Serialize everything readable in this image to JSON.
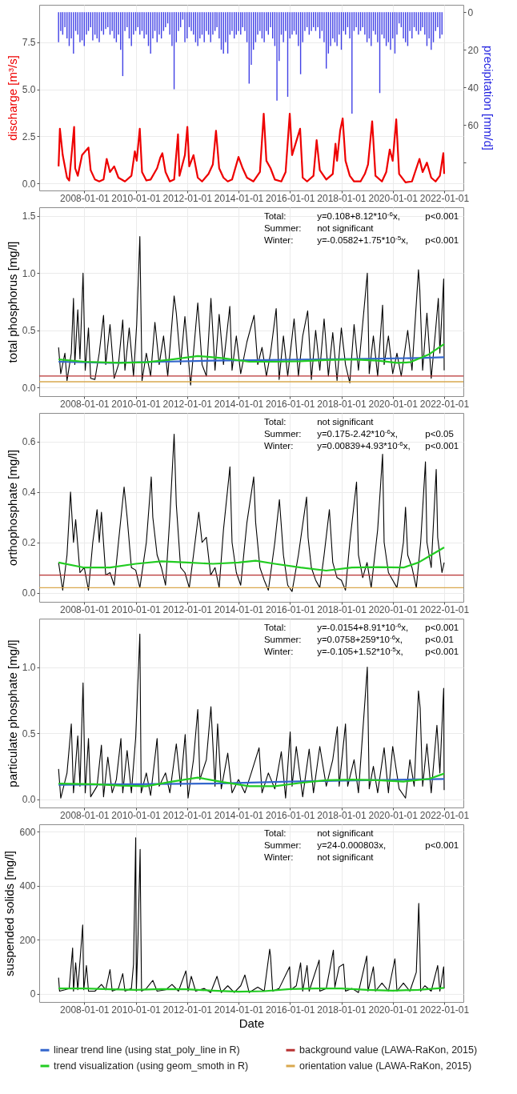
{
  "chart_data": [
    {
      "type": "line",
      "ylabel": "discharge [m³/s]",
      "y2label": "precipitation [mm/d]",
      "xlim": [
        "2006-04-01",
        "2022-10-01"
      ],
      "xticks": [
        "2008-01-01",
        "2010-01-01",
        "2012-01-01",
        "2014-01-01",
        "2016-01-01",
        "2018-01-01",
        "2020-01-01",
        "2022-01-01"
      ],
      "ylim": [
        -0.38,
        9.49
      ],
      "yticks": [
        {
          "value": 0,
          "label": "0.0"
        },
        {
          "value": 2.5,
          "label": "2.5"
        },
        {
          "value": 5,
          "label": "5.0"
        },
        {
          "value": 7.5,
          "label": "7.5"
        }
      ],
      "y2lim": [
        94.8,
        -3.9
      ],
      "y2ticks": [
        0,
        20,
        40,
        60,
        {
          "value": 80,
          "label": null
        }
      ],
      "grid": true,
      "series": [
        {
          "type": "bar",
          "axis": "y2",
          "color": "#1f1fe0",
          "x": [
            "2007-01",
            "2007-02",
            "2007-03",
            "2007-04",
            "2007-05",
            "2007-06",
            "2007-07",
            "2007-08",
            "2007-09",
            "2007-10",
            "2007-11",
            "2007-12",
            "2008-01",
            "2008-02",
            "2008-03",
            "2008-04",
            "2008-05",
            "2008-06",
            "2008-07",
            "2008-08",
            "2008-09",
            "2008-10",
            "2008-11",
            "2008-12",
            "2009-01",
            "2009-02",
            "2009-03",
            "2009-04",
            "2009-05",
            "2009-06",
            "2009-07",
            "2009-08",
            "2009-09",
            "2009-10",
            "2009-11",
            "2009-12",
            "2010-01",
            "2010-02",
            "2010-03",
            "2010-04",
            "2010-05",
            "2010-06",
            "2010-07",
            "2010-08",
            "2010-09",
            "2010-10",
            "2010-11",
            "2010-12",
            "2011-01",
            "2011-02",
            "2011-03",
            "2011-04",
            "2011-05",
            "2011-06",
            "2011-07",
            "2011-08",
            "2011-09",
            "2011-10",
            "2011-11",
            "2011-12",
            "2012-01",
            "2012-02",
            "2012-03",
            "2012-04",
            "2012-05",
            "2012-06",
            "2012-07",
            "2012-08",
            "2012-09",
            "2012-10",
            "2012-11",
            "2012-12",
            "2013-01",
            "2013-02",
            "2013-03",
            "2013-04",
            "2013-05",
            "2013-06",
            "2013-07",
            "2013-08",
            "2013-09",
            "2013-10",
            "2013-11",
            "2013-12",
            "2014-01",
            "2014-02",
            "2014-03",
            "2014-04",
            "2014-05",
            "2014-06",
            "2014-07",
            "2014-08",
            "2014-09",
            "2014-10",
            "2014-11",
            "2014-12",
            "2015-01",
            "2015-02",
            "2015-03",
            "2015-04",
            "2015-05",
            "2015-06",
            "2015-07",
            "2015-08",
            "2015-09",
            "2015-10",
            "2015-11",
            "2015-12",
            "2016-01",
            "2016-02",
            "2016-03",
            "2016-04",
            "2016-05",
            "2016-06",
            "2016-07",
            "2016-08",
            "2016-09",
            "2016-10",
            "2016-11",
            "2016-12",
            "2017-01",
            "2017-02",
            "2017-03",
            "2017-04",
            "2017-05",
            "2017-06",
            "2017-07",
            "2017-08",
            "2017-09",
            "2017-10",
            "2017-11",
            "2017-12",
            "2018-01",
            "2018-02",
            "2018-03",
            "2018-04",
            "2018-05",
            "2018-06",
            "2018-07",
            "2018-08",
            "2018-09",
            "2018-10",
            "2018-11",
            "2018-12",
            "2019-01",
            "2019-02",
            "2019-03",
            "2019-04",
            "2019-05",
            "2019-06",
            "2019-07",
            "2019-08",
            "2019-09",
            "2019-10",
            "2019-11",
            "2019-12",
            "2020-01",
            "2020-02",
            "2020-03",
            "2020-04",
            "2020-05",
            "2020-06",
            "2020-07",
            "2020-08",
            "2020-09",
            "2020-10",
            "2020-11",
            "2020-12",
            "2021-01",
            "2021-02",
            "2021-03",
            "2021-04",
            "2021-05",
            "2021-06",
            "2021-07",
            "2021-08",
            "2021-09",
            "2021-10",
            "2021-11",
            "2021-12"
          ],
          "values": [
            16,
            10,
            12,
            8,
            14,
            18,
            14,
            22,
            10,
            12,
            16,
            15,
            18,
            12,
            10,
            8,
            15,
            12,
            14,
            16,
            10,
            12,
            9,
            8,
            12,
            10,
            14,
            16,
            12,
            20,
            34,
            10,
            8,
            14,
            18,
            12,
            10,
            8,
            12,
            10,
            14,
            12,
            18,
            22,
            14,
            10,
            16,
            12,
            14,
            10,
            8,
            6,
            12,
            18,
            41,
            16,
            10,
            8,
            4,
            16,
            14,
            8,
            10,
            12,
            16,
            18,
            14,
            12,
            16,
            10,
            12,
            16,
            12,
            10,
            8,
            14,
            20,
            22,
            16,
            22,
            12,
            10,
            14,
            12,
            10,
            12,
            8,
            10,
            16,
            38,
            28,
            20,
            16,
            12,
            10,
            14,
            16,
            10,
            12,
            8,
            14,
            18,
            47,
            26,
            12,
            16,
            10,
            45,
            14,
            12,
            10,
            12,
            18,
            33,
            16,
            10,
            8,
            12,
            10,
            8,
            10,
            8,
            14,
            10,
            16,
            30,
            22,
            18,
            14,
            16,
            18,
            12,
            20,
            10,
            12,
            8,
            14,
            54,
            10,
            8,
            12,
            10,
            8,
            12,
            16,
            14,
            18,
            10,
            12,
            16,
            43,
            12,
            14,
            18,
            16,
            20,
            14,
            22,
            12,
            6,
            8,
            14,
            16,
            18,
            10,
            14,
            8,
            10,
            12,
            10,
            8,
            12,
            18,
            14,
            20,
            16,
            10,
            8,
            14,
            12
          ]
        },
        {
          "color": "#ee0000",
          "x": [
            "2007-01-01",
            "2007-01-20",
            "2007-03-01",
            "2007-05-01",
            "2007-06-01",
            "2007-08-10",
            "2007-08-25",
            "2007-10-01",
            "2007-12-01",
            "2008-03-01",
            "2008-04-01",
            "2008-06-01",
            "2008-08-01",
            "2008-10-01",
            "2008-11-15",
            "2009-01-01",
            "2009-03-01",
            "2009-05-01",
            "2009-08-01",
            "2009-11-01",
            "2009-12-20",
            "2010-01-15",
            "2010-02-28",
            "2010-04-01",
            "2010-06-01",
            "2010-08-01",
            "2010-11-01",
            "2010-12-15",
            "2011-01-15",
            "2011-03-01",
            "2011-05-01",
            "2011-07-01",
            "2011-08-25",
            "2011-09-15",
            "2011-12-01",
            "2012-01-05",
            "2012-02-01",
            "2012-04-01",
            "2012-06-01",
            "2012-08-01",
            "2012-11-01",
            "2013-01-01",
            "2013-02-15",
            "2013-04-01",
            "2013-06-01",
            "2013-08-01",
            "2013-10-01",
            "2014-01-01",
            "2014-03-01",
            "2014-05-01",
            "2014-08-01",
            "2014-11-01",
            "2014-12-25",
            "2015-02-01",
            "2015-04-01",
            "2015-06-01",
            "2015-09-01",
            "2015-11-01",
            "2015-12-30",
            "2016-02-01",
            "2016-05-25",
            "2016-07-01",
            "2016-09-01",
            "2016-12-01",
            "2017-01-15",
            "2017-03-01",
            "2017-06-01",
            "2017-09-01",
            "2017-10-10",
            "2017-11-01",
            "2017-12-15",
            "2018-01-20",
            "2018-03-01",
            "2018-05-01",
            "2018-07-01",
            "2018-10-01",
            "2018-12-01",
            "2019-01-15",
            "2019-03-15",
            "2019-05-01",
            "2019-08-01",
            "2019-10-01",
            "2019-11-20",
            "2020-01-01",
            "2020-02-20",
            "2020-04-01",
            "2020-07-01",
            "2020-10-01",
            "2021-01-15",
            "2021-03-01",
            "2021-05-01",
            "2021-07-01",
            "2021-09-01",
            "2021-11-01",
            "2021-12-20",
            "2022-01-01"
          ],
          "values": [
            0.9,
            2.9,
            1.5,
            0.3,
            0.15,
            3.0,
            0.8,
            0.4,
            1.5,
            1.9,
            0.7,
            0.2,
            0.1,
            0.2,
            1.3,
            0.6,
            0.9,
            0.3,
            0.1,
            0.4,
            1.7,
            1.2,
            2.9,
            0.6,
            0.15,
            0.2,
            0.8,
            1.35,
            1.6,
            0.6,
            0.1,
            0.2,
            2.6,
            0.4,
            1.5,
            3.0,
            0.9,
            1.5,
            0.3,
            0.1,
            0.5,
            1.0,
            2.8,
            0.8,
            0.3,
            0.1,
            0.2,
            1.4,
            0.8,
            0.3,
            0.1,
            0.6,
            3.7,
            1.2,
            0.8,
            0.2,
            0.1,
            0.6,
            3.7,
            1.5,
            2.9,
            0.3,
            0.1,
            0.4,
            2.3,
            0.7,
            0.2,
            0.5,
            2.1,
            1.2,
            2.8,
            3.45,
            1.2,
            0.4,
            0.1,
            0.1,
            0.5,
            1.0,
            3.3,
            0.4,
            0.1,
            0.6,
            1.8,
            1.2,
            3.4,
            0.5,
            0.05,
            0.1,
            1.3,
            0.6,
            1.1,
            0.3,
            0.1,
            0.4,
            1.6,
            0.5
          ]
        }
      ]
    },
    {
      "type": "line",
      "ylabel": "total phosphorus [mg/l]",
      "xlim": [
        "2006-04-01",
        "2022-10-01"
      ],
      "xticks": [
        "2008-01-01",
        "2010-01-01",
        "2012-01-01",
        "2014-01-01",
        "2016-01-01",
        "2018-01-01",
        "2020-01-01",
        "2022-01-01"
      ],
      "ylim": [
        -0.076,
        1.576
      ],
      "yticks": [
        {
          "value": 0,
          "label": "0.0"
        },
        {
          "value": 0.5,
          "label": "0.5"
        },
        {
          "value": 1,
          "label": "1.0"
        },
        {
          "value": 1.5,
          "label": "1.5"
        }
      ],
      "grid": true,
      "legend": "bottom",
      "annotations": [
        "Total:\ty=0.108+8.12*10$^{-6}$x,\tp<0.001",
        "Summer:\tnot significant",
        "Winter:\ty=-0.0582+1.75*10$^{-5}$x,\tp<0.001"
      ],
      "ref_lines": [
        {
          "axis": "y",
          "value": 0.1,
          "label": "background value (LAWA-RaKon, 2015)",
          "color": "#b83232"
        },
        {
          "axis": "y",
          "value": 0.05,
          "label": "orientation value (LAWA-RaKon, 2015)",
          "color": "#d9a84e"
        }
      ],
      "series": [
        {
          "color": "#000000",
          "x": [
            "2007-01-01",
            "2007-02-01",
            "2007-04-01",
            "2007-05-01",
            "2007-07-01",
            "2007-08-01",
            "2007-08-20",
            "2007-10-01",
            "2007-11-01",
            "2007-12-15",
            "2008-01-15",
            "2008-03-01",
            "2008-04-01",
            "2008-06-01",
            "2008-08-01",
            "2008-10-01",
            "2008-11-01",
            "2009-01-01",
            "2009-03-01",
            "2009-05-01",
            "2009-07-01",
            "2009-08-01",
            "2009-10-01",
            "2009-12-01",
            "2010-01-15",
            "2010-03-01",
            "2010-04-01",
            "2010-06-01",
            "2010-08-01",
            "2010-10-01",
            "2010-12-01",
            "2011-02-01",
            "2011-04-01",
            "2011-07-01",
            "2011-08-01",
            "2011-10-01",
            "2011-12-01",
            "2012-02-20",
            "2012-04-01",
            "2012-06-01",
            "2012-08-01",
            "2012-10-01",
            "2012-12-05",
            "2013-02-01",
            "2013-04-01",
            "2013-06-01",
            "2013-08-30",
            "2013-10-01",
            "2013-12-01",
            "2014-02-01",
            "2014-05-01",
            "2014-08-10",
            "2014-10-01",
            "2014-12-01",
            "2015-02-01",
            "2015-04-01",
            "2015-06-20",
            "2015-08-01",
            "2015-10-01",
            "2015-12-01",
            "2016-03-01",
            "2016-05-01",
            "2016-07-01",
            "2016-09-10",
            "2016-11-01",
            "2017-01-01",
            "2017-03-01",
            "2017-05-01",
            "2017-07-01",
            "2017-09-01",
            "2017-11-01",
            "2018-01-01",
            "2018-03-01",
            "2018-05-01",
            "2018-07-01",
            "2018-09-01",
            "2019-01-05",
            "2019-02-01",
            "2019-04-01",
            "2019-06-01",
            "2019-08-10",
            "2019-09-01",
            "2019-11-01",
            "2020-01-01",
            "2020-03-01",
            "2020-05-01",
            "2020-08-01",
            "2020-10-01",
            "2021-01-01",
            "2021-01-20",
            "2021-03-01",
            "2021-05-01",
            "2021-07-01",
            "2021-09-01",
            "2021-10-10",
            "2021-11-01",
            "2021-12-25",
            "2022-01-01"
          ],
          "values": [
            0.35,
            0.12,
            0.3,
            0.06,
            0.3,
            0.78,
            0.2,
            0.68,
            0.25,
            1.0,
            0.15,
            0.52,
            0.08,
            0.07,
            0.3,
            0.63,
            0.2,
            0.55,
            0.08,
            0.2,
            0.59,
            0.15,
            0.52,
            0.1,
            0.55,
            1.32,
            0.06,
            0.3,
            0.1,
            0.57,
            0.2,
            0.45,
            0.1,
            0.8,
            0.65,
            0.2,
            0.62,
            0.02,
            0.3,
            0.74,
            0.2,
            0.1,
            0.78,
            0.15,
            0.64,
            0.2,
            0.71,
            0.15,
            0.45,
            0.12,
            0.4,
            0.63,
            0.2,
            0.35,
            0.1,
            0.3,
            0.69,
            0.07,
            0.45,
            0.1,
            0.6,
            0.1,
            0.45,
            0.67,
            0.07,
            0.5,
            0.15,
            0.6,
            0.1,
            0.48,
            0.06,
            0.52,
            0.2,
            0.04,
            0.55,
            0.15,
            1.0,
            0.12,
            0.45,
            0.1,
            0.72,
            0.2,
            0.45,
            0.12,
            0.3,
            0.1,
            0.5,
            0.15,
            1.03,
            0.85,
            0.15,
            0.65,
            0.08,
            0.5,
            0.78,
            0.3,
            0.95,
            0.15
          ]
        },
        {
          "name": "linear trend line (using stat_poly_line in R)",
          "color": "#3366cc",
          "x": [
            "2007-01-01",
            "2009-01-01",
            "2011-01-01",
            "2013-01-01",
            "2015-01-01",
            "2017-01-01",
            "2019-01-01",
            "2021-01-01",
            "2022-01-01"
          ],
          "values": [
            0.225,
            0.215,
            0.225,
            0.235,
            0.24,
            0.245,
            0.25,
            0.258,
            0.265
          ]
        },
        {
          "name": "trend visualization (using geom_smoth in R)",
          "color": "#22cc22",
          "x": [
            "2007-01-01",
            "2008-01-01",
            "2009-06-01",
            "2010-06-01",
            "2011-06-01",
            "2012-06-01",
            "2013-06-01",
            "2014-06-01",
            "2015-06-01",
            "2016-06-01",
            "2017-06-01",
            "2018-06-01",
            "2019-06-01",
            "2020-03-01",
            "2020-09-01",
            "2021-06-01",
            "2022-01-01"
          ],
          "values": [
            0.245,
            0.225,
            0.215,
            0.22,
            0.245,
            0.275,
            0.255,
            0.225,
            0.225,
            0.23,
            0.24,
            0.245,
            0.235,
            0.215,
            0.22,
            0.29,
            0.38
          ]
        }
      ]
    },
    {
      "type": "line",
      "ylabel": "orthophosphate [mg/l]",
      "xlim": [
        "2006-04-01",
        "2022-10-01"
      ],
      "xticks": [
        "2008-01-01",
        "2010-01-01",
        "2012-01-01",
        "2014-01-01",
        "2016-01-01",
        "2018-01-01",
        "2020-01-01",
        "2022-01-01"
      ],
      "ylim": [
        -0.036,
        0.714
      ],
      "yticks": [
        {
          "value": 0,
          "label": "0.0"
        },
        {
          "value": 0.2,
          "label": "0.2"
        },
        {
          "value": 0.4,
          "label": "0.4"
        },
        {
          "value": 0.6,
          "label": "0.6"
        }
      ],
      "grid": true,
      "annotations": [
        "Total:\tnot significant",
        "Summer:\ty=0.175-2.42*10$^{-6}$x,\tp<0.05",
        "Winter:\ty=0.00839+4.93*10$^{-6}$x,\tp<0.001"
      ],
      "ref_lines": [
        {
          "axis": "y",
          "value": 0.07,
          "color": "#b83232"
        },
        {
          "axis": "y",
          "value": 0.02,
          "color": "#d9a84e"
        }
      ],
      "series": [
        {
          "color": "#000000",
          "x": [
            "2007-01-01",
            "2007-03-01",
            "2007-05-01",
            "2007-06-20",
            "2007-08-01",
            "2007-09-01",
            "2007-11-01",
            "2008-01-01",
            "2008-03-01",
            "2008-05-01",
            "2008-07-01",
            "2008-08-01",
            "2008-09-01",
            "2008-11-01",
            "2009-01-01",
            "2009-03-01",
            "2009-05-01",
            "2009-07-20",
            "2009-09-01",
            "2009-11-01",
            "2010-01-01",
            "2010-03-01",
            "2010-06-01",
            "2010-08-10",
            "2010-09-01",
            "2010-11-01",
            "2011-01-01",
            "2011-03-01",
            "2011-05-01",
            "2011-07-01",
            "2011-08-01",
            "2011-10-01",
            "2011-12-01",
            "2012-02-01",
            "2012-04-01",
            "2012-06-15",
            "2012-08-01",
            "2012-10-01",
            "2012-12-01",
            "2013-02-01",
            "2013-04-01",
            "2013-06-01",
            "2013-09-01",
            "2013-10-01",
            "2013-12-01",
            "2014-02-01",
            "2014-05-01",
            "2014-08-05",
            "2014-09-01",
            "2014-11-01",
            "2015-01-01",
            "2015-03-01",
            "2015-06-01",
            "2015-08-05",
            "2015-10-01",
            "2015-12-01",
            "2016-02-01",
            "2016-05-01",
            "2016-08-25",
            "2016-09-15",
            "2016-11-01",
            "2017-01-01",
            "2017-03-01",
            "2017-05-01",
            "2017-07-15",
            "2017-09-01",
            "2017-11-01",
            "2018-01-01",
            "2018-03-01",
            "2018-05-01",
            "2018-08-05",
            "2018-09-01",
            "2018-11-01",
            "2019-01-01",
            "2019-03-01",
            "2019-06-01",
            "2019-08-10",
            "2019-09-01",
            "2019-11-01",
            "2020-01-01",
            "2020-03-01",
            "2020-06-01",
            "2020-07-01",
            "2020-08-01",
            "2020-10-01",
            "2020-12-01",
            "2021-02-01",
            "2021-04-10",
            "2021-05-01",
            "2021-07-01",
            "2021-09-10",
            "2021-10-01",
            "2021-12-01",
            "2022-01-01"
          ],
          "values": [
            0.12,
            0.01,
            0.15,
            0.4,
            0.2,
            0.29,
            0.08,
            0.1,
            0.01,
            0.2,
            0.33,
            0.2,
            0.32,
            0.07,
            0.08,
            0.03,
            0.2,
            0.42,
            0.3,
            0.1,
            0.09,
            0.02,
            0.2,
            0.46,
            0.3,
            0.15,
            0.1,
            0.03,
            0.3,
            0.63,
            0.35,
            0.1,
            0.08,
            0.02,
            0.15,
            0.32,
            0.2,
            0.22,
            0.07,
            0.1,
            0.02,
            0.25,
            0.5,
            0.2,
            0.08,
            0.03,
            0.28,
            0.46,
            0.28,
            0.1,
            0.05,
            0.01,
            0.2,
            0.37,
            0.15,
            0.03,
            0.005,
            0.15,
            0.38,
            0.22,
            0.1,
            0.05,
            0.02,
            0.15,
            0.33,
            0.12,
            0.06,
            0.05,
            0.01,
            0.2,
            0.44,
            0.15,
            0.06,
            0.12,
            0.02,
            0.25,
            0.55,
            0.2,
            0.08,
            0.05,
            0.02,
            0.2,
            0.34,
            0.15,
            0.1,
            0.02,
            0.2,
            0.52,
            0.2,
            0.1,
            0.49,
            0.22,
            0.08,
            0.12
          ]
        },
        {
          "color": "#22cc22",
          "x": [
            "2007-01-01",
            "2008-01-01",
            "2009-01-01",
            "2010-01-01",
            "2011-01-01",
            "2012-01-01",
            "2013-01-01",
            "2014-01-01",
            "2014-09-01",
            "2015-06-01",
            "2016-06-01",
            "2017-06-01",
            "2018-06-01",
            "2019-06-01",
            "2020-06-01",
            "2021-01-01",
            "2021-07-01",
            "2022-01-01"
          ],
          "values": [
            0.12,
            0.1,
            0.1,
            0.115,
            0.125,
            0.12,
            0.115,
            0.12,
            0.127,
            0.115,
            0.1,
            0.088,
            0.1,
            0.102,
            0.1,
            0.12,
            0.15,
            0.18
          ]
        }
      ]
    },
    {
      "type": "line",
      "ylabel": "particulate phosphate [mg/l]",
      "xlim": [
        "2006-04-01",
        "2022-10-01"
      ],
      "xticks": [
        "2008-01-01",
        "2010-01-01",
        "2012-01-01",
        "2014-01-01",
        "2016-01-01",
        "2018-01-01",
        "2020-01-01",
        "2022-01-01"
      ],
      "ylim": [
        -0.061,
        1.366
      ],
      "yticks": [
        {
          "value": 0,
          "label": "0.0"
        },
        {
          "value": 0.5,
          "label": "0.5"
        },
        {
          "value": 1,
          "label": "1.0"
        }
      ],
      "grid": true,
      "annotations": [
        "Total:\ty=-0.0154+8.91*10$^{-6}$x,\tp<0.001",
        "Summer:\ty=0.0758+259*10$^{-6}$x,\tp<0.01",
        "Winter:\ty=-0.105+1.52*10$^{-5}$x,\tp<0.001"
      ],
      "series": [
        {
          "color": "#000000",
          "x": [
            "2007-01-01",
            "2007-02-01",
            "2007-05-01",
            "2007-07-01",
            "2007-08-01",
            "2007-10-01",
            "2007-11-01",
            "2007-12-15",
            "2008-01-15",
            "2008-03-01",
            "2008-04-01",
            "2008-07-01",
            "2008-09-01",
            "2008-10-01",
            "2008-12-01",
            "2009-02-01",
            "2009-04-01",
            "2009-06-05",
            "2009-07-01",
            "2009-09-01",
            "2009-11-01",
            "2010-01-01",
            "2010-03-01",
            "2010-03-20",
            "2010-06-01",
            "2010-08-01",
            "2010-11-01",
            "2010-12-01",
            "2011-03-01",
            "2011-05-01",
            "2011-08-01",
            "2011-10-01",
            "2011-12-05",
            "2012-01-15",
            "2012-04-01",
            "2012-06-01",
            "2012-07-01",
            "2012-10-01",
            "2012-12-05",
            "2013-02-01",
            "2013-03-10",
            "2013-05-01",
            "2013-08-01",
            "2013-10-01",
            "2014-01-01",
            "2014-04-01",
            "2014-07-01",
            "2014-10-20",
            "2014-12-01",
            "2015-03-01",
            "2015-06-01",
            "2015-09-01",
            "2015-11-01",
            "2016-01-05",
            "2016-02-01",
            "2016-04-01",
            "2016-07-01",
            "2016-10-01",
            "2016-12-01",
            "2017-03-01",
            "2017-06-01",
            "2017-09-01",
            "2017-11-05",
            "2017-12-01",
            "2018-03-01",
            "2018-04-01",
            "2018-07-01",
            "2018-09-01",
            "2019-01-05",
            "2019-02-01",
            "2019-04-01",
            "2019-06-01",
            "2019-09-01",
            "2019-11-01",
            "2020-01-01",
            "2020-04-01",
            "2020-07-01",
            "2020-09-01",
            "2020-11-01",
            "2021-01-01",
            "2021-01-25",
            "2021-03-01",
            "2021-05-01",
            "2021-07-01",
            "2021-09-20",
            "2021-11-01",
            "2021-12-25",
            "2022-01-01"
          ],
          "values": [
            0.23,
            0.01,
            0.2,
            0.57,
            0.05,
            0.48,
            0.1,
            0.88,
            0.05,
            0.46,
            0.02,
            0.1,
            0.41,
            0.02,
            0.32,
            0.05,
            0.15,
            0.46,
            0.05,
            0.37,
            0.05,
            0.47,
            1.25,
            0.05,
            0.2,
            0.03,
            0.46,
            0.1,
            0.2,
            0.05,
            0.42,
            0.1,
            0.49,
            0.01,
            0.3,
            0.68,
            0.15,
            0.3,
            0.7,
            0.1,
            0.57,
            0.08,
            0.35,
            0.05,
            0.15,
            0.05,
            0.2,
            0.39,
            0.05,
            0.2,
            0.08,
            0.36,
            0.01,
            0.51,
            0.1,
            0.4,
            0.02,
            0.38,
            0.05,
            0.4,
            0.1,
            0.3,
            0.55,
            0.1,
            0.57,
            0.1,
            0.3,
            0.05,
            1.0,
            0.08,
            0.25,
            0.05,
            0.39,
            0.05,
            0.4,
            0.08,
            0.01,
            0.3,
            0.1,
            0.82,
            0.69,
            0.1,
            0.42,
            0.05,
            0.56,
            0.2,
            0.84,
            0.07
          ]
        },
        {
          "color": "#3366cc",
          "x": [
            "2007-01-01",
            "2010-01-01",
            "2013-01-01",
            "2016-01-01",
            "2019-01-01",
            "2022-01-01"
          ],
          "values": [
            0.11,
            0.115,
            0.12,
            0.135,
            0.145,
            0.155
          ]
        },
        {
          "color": "#22cc22",
          "x": [
            "2007-01-01",
            "2008-06-01",
            "2009-06-01",
            "2010-06-01",
            "2011-06-01",
            "2012-06-01",
            "2013-06-01",
            "2014-06-01",
            "2015-06-01",
            "2016-06-01",
            "2017-06-01",
            "2018-06-01",
            "2019-06-01",
            "2020-06-01",
            "2021-06-01",
            "2022-01-01"
          ],
          "values": [
            0.12,
            0.115,
            0.105,
            0.1,
            0.135,
            0.165,
            0.13,
            0.1,
            0.1,
            0.125,
            0.145,
            0.15,
            0.145,
            0.135,
            0.155,
            0.195
          ]
        }
      ]
    },
    {
      "type": "line",
      "xlabel": "Date",
      "ylabel": "suspended solids [mg/l]",
      "xlim": [
        "2006-04-01",
        "2022-10-01"
      ],
      "xticks": [
        "2008-01-01",
        "2010-01-01",
        "2012-01-01",
        "2014-01-01",
        "2016-01-01",
        "2018-01-01",
        "2020-01-01",
        "2022-01-01"
      ],
      "ylim": [
        -30,
        627.6
      ],
      "yticks": [
        0,
        200,
        400,
        600
      ],
      "grid": true,
      "annotations": [
        "Total:\tnot significant",
        "Summer:\ty=24-0.000803x,\tp<0.001",
        "Winter:\tnot significant"
      ],
      "series": [
        {
          "color": "#000000",
          "x": [
            "2007-01-01",
            "2007-01-15",
            "2007-04-01",
            "2007-06-01",
            "2007-07-20",
            "2007-08-01",
            "2007-09-01",
            "2007-10-01",
            "2007-12-10",
            "2007-12-25",
            "2008-02-01",
            "2008-03-01",
            "2008-06-01",
            "2008-09-01",
            "2008-11-01",
            "2009-01-01",
            "2009-02-01",
            "2009-05-01",
            "2009-07-01",
            "2009-08-01",
            "2009-11-01",
            "2009-12-01",
            "2010-01-01",
            "2010-01-10",
            "2010-02-01",
            "2010-03-05",
            "2010-03-10",
            "2010-03-25",
            "2010-06-01",
            "2010-09-01",
            "2010-11-01",
            "2011-03-01",
            "2011-06-01",
            "2011-09-01",
            "2011-12-15",
            "2012-01-15",
            "2012-03-01",
            "2012-05-01",
            "2012-09-01",
            "2012-12-01",
            "2013-03-01",
            "2013-05-01",
            "2013-08-01",
            "2013-11-01",
            "2014-02-01",
            "2014-04-01",
            "2014-06-01",
            "2014-10-01",
            "2015-01-01",
            "2015-03-20",
            "2015-04-01",
            "2015-05-01",
            "2015-08-01",
            "2015-12-28",
            "2016-01-15",
            "2016-04-01",
            "2016-06-01",
            "2016-07-01",
            "2016-09-01",
            "2016-10-01",
            "2017-02-20",
            "2017-03-01",
            "2017-06-01",
            "2017-09-10",
            "2017-10-01",
            "2017-12-01",
            "2018-02-01",
            "2018-03-01",
            "2018-06-01",
            "2018-09-01",
            "2018-12-28",
            "2019-01-15",
            "2019-04-01",
            "2019-05-01",
            "2019-08-01",
            "2019-11-01",
            "2020-02-01",
            "2020-03-01",
            "2020-06-01",
            "2020-09-01",
            "2020-12-01",
            "2021-01-05",
            "2021-01-20",
            "2021-02-01",
            "2021-04-01",
            "2021-07-01",
            "2021-10-01",
            "2021-11-01",
            "2021-12-25",
            "2022-01-01"
          ],
          "values": [
            60,
            10,
            15,
            20,
            170,
            10,
            115,
            15,
            255,
            15,
            105,
            10,
            10,
            35,
            15,
            90,
            10,
            20,
            75,
            10,
            20,
            110,
            578,
            10,
            190,
            535,
            380,
            10,
            20,
            50,
            10,
            15,
            35,
            10,
            85,
            10,
            65,
            10,
            20,
            5,
            65,
            5,
            30,
            5,
            30,
            70,
            5,
            25,
            10,
            165,
            140,
            10,
            20,
            100,
            15,
            30,
            115,
            10,
            105,
            10,
            125,
            10,
            20,
            162,
            25,
            100,
            110,
            10,
            20,
            5,
            140,
            10,
            100,
            10,
            40,
            10,
            130,
            10,
            40,
            10,
            80,
            335,
            180,
            10,
            30,
            10,
            105,
            10,
            100,
            20
          ]
        },
        {
          "color": "#22cc22",
          "x": [
            "2007-01-01",
            "2008-01-01",
            "2009-01-01",
            "2010-01-01",
            "2011-01-01",
            "2012-01-01",
            "2013-01-01",
            "2014-01-01",
            "2015-01-01",
            "2016-01-01",
            "2017-01-01",
            "2018-01-01",
            "2019-01-01",
            "2020-01-01",
            "2021-01-01",
            "2022-01-01"
          ],
          "values": [
            20,
            20,
            17,
            15,
            18,
            17,
            12,
            8,
            10,
            18,
            20,
            20,
            15,
            12,
            15,
            22
          ]
        }
      ]
    }
  ]
}
